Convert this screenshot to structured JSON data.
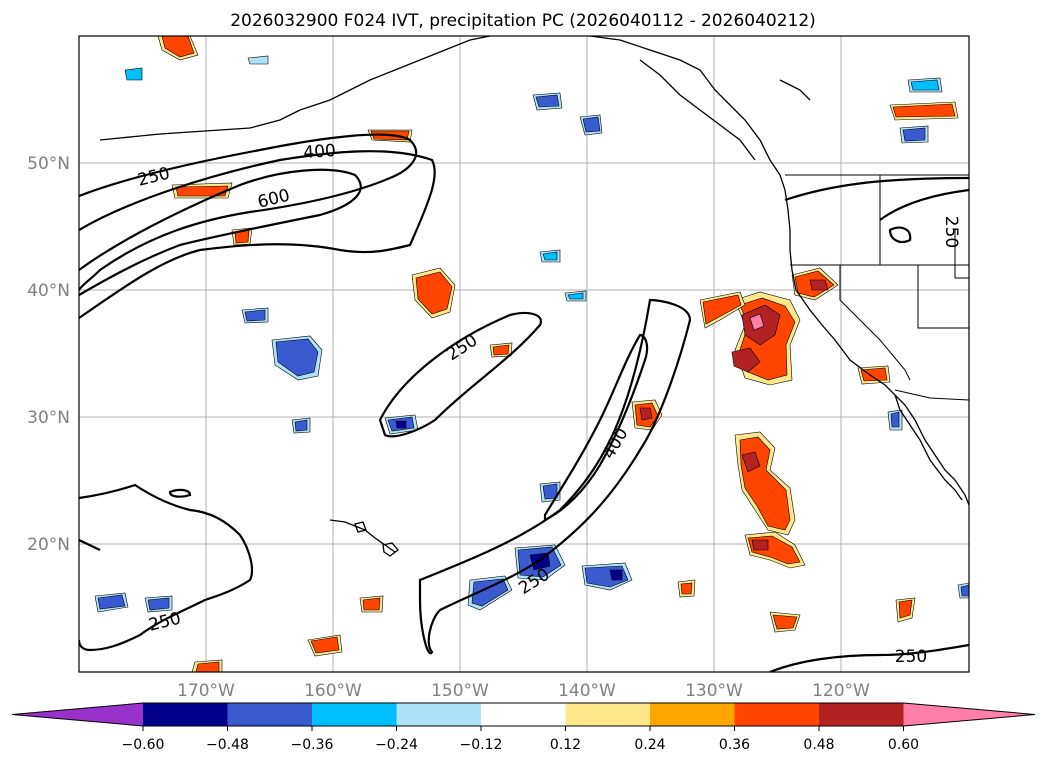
{
  "title": "2026032900 F024 IVT, precipitation PC (2026040112 - 2026040212)",
  "map": {
    "lat_labels": [
      "50°N",
      "40°N",
      "30°N",
      "20°N"
    ],
    "lon_labels": [
      "170°W",
      "160°W",
      "150°W",
      "140°W",
      "130°W",
      "120°W"
    ],
    "contour_labels": [
      "250",
      "400",
      "600",
      "250",
      "400",
      "250",
      "250",
      "250",
      "250"
    ]
  },
  "colorbar": {
    "ticks": [
      "−0.60",
      "−0.48",
      "−0.36",
      "−0.24",
      "−0.12",
      "0.12",
      "0.24",
      "0.36",
      "0.48",
      "0.60"
    ],
    "colors": [
      "#9932cc",
      "#00008b",
      "#3a5bd0",
      "#00bfff",
      "#aee2fa",
      "#ffffff",
      "#ffe88c",
      "#ffa500",
      "#ff4500",
      "#b22222",
      "#ff7fa8"
    ]
  },
  "colors": {
    "positive_light": "#ffe88c",
    "positive_mid": "#ffa500",
    "positive_strong": "#ff4500",
    "positive_dark": "#b22222",
    "positive_max": "#ff7fa8",
    "negative_light": "#aee2fa",
    "negative_mid": "#00bfff",
    "negative_strong": "#3a5bd0",
    "negative_dark": "#00008b"
  }
}
